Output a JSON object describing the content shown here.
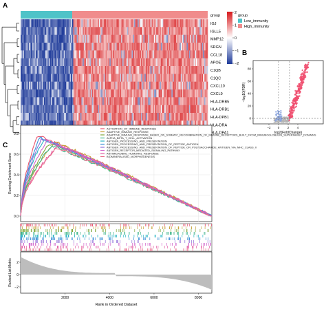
{
  "panels": {
    "a_label": "A",
    "b_label": "B",
    "c_label": "C"
  },
  "heatmap": {
    "genes": [
      "IGJ",
      "IGLL5",
      "MMP12",
      "SRGN",
      "CCL18",
      "APOE",
      "C1QB",
      "C1QC",
      "CXCL10",
      "CXCL9",
      "HLA-DRB5",
      "HLA-DRB1",
      "HLA-DPB1",
      "HLA-DRA",
      "HLA-DPA1"
    ],
    "group_annotation_label": "group",
    "colorbar_ticks": [
      "2",
      "1",
      "0",
      "−1",
      "−2"
    ],
    "legend_title": "group",
    "legend_items": [
      {
        "label": "Low_immunity",
        "color": "#4fc3c8"
      },
      {
        "label": "High_immunity",
        "color": "#f08c8c"
      }
    ],
    "colors": {
      "low": "#1f3b9a",
      "mid": "#ffffff",
      "high": "#d7191c"
    }
  },
  "volcano": {
    "xlabel": "log2(FoldChange)",
    "ylabel": "−log10(FDR)",
    "yticks": [
      "80",
      "60",
      "40",
      "20",
      "0"
    ],
    "xticks": [
      "−2",
      "0",
      "2",
      "4"
    ]
  },
  "gsea": {
    "ylabel_top": "Running Enrichment Score",
    "ylabel_bottom": "Ranked List Metric",
    "xlabel": "Rank in Ordered Dataset",
    "es_ticks": [
      "0.8",
      "0.6",
      "0.4",
      "0.2",
      "0.0"
    ],
    "metric_ticks": [
      "2",
      "0",
      "−2"
    ],
    "rank_ticks": [
      "2000",
      "4000",
      "6000",
      "8000"
    ],
    "gene_sets": [
      {
        "name": "ACTIVATION_OF_IMMUNE_RESPONSE",
        "color": "#e8546f"
      },
      {
        "name": "ADAPTIVE_IMMUNE_RESPONSE",
        "color": "#c7a23b"
      },
      {
        "name": "ADAPTIVE_IMMUNE_RESPONSE_BASED_ON_SOMATIC_RECOMBINATION_OF_IMMUNE_RECEPTORS_BUILT_FROM_IMMUNOGLOBULIN_SUPERFAMILY_DOMAINS",
        "color": "#7fa63a"
      },
      {
        "name": "ALPHA_BETA_T_CELL_ACTIVATION",
        "color": "#3fb58a"
      },
      {
        "name": "ANTIGEN_PROCESSING_AND_PRESENTATION",
        "color": "#29b5c4"
      },
      {
        "name": "ANTIGEN_PROCESSING_AND_PRESENTATION_OF_PEPTIDE_ANTIGEN",
        "color": "#3a8fd6"
      },
      {
        "name": "ANTIGEN_PROCESSING_AND_PRESENTATION_OF_PEPTIDE_OR_POLYSACCHARIDE_ANTIGEN_VIA_MHC_CLASS_II",
        "color": "#8f6fd8"
      },
      {
        "name": "ANTIGEN_RECEPTOR_MEDIATED_SIGNALING_PATHWAY",
        "color": "#d162c9"
      },
      {
        "name": "ANTIMICROBIAL_HUMORAL_RESPONSE",
        "color": "#e45fa6"
      },
      {
        "name": "BIOMINERALISED_MORPHOGENESIS",
        "color": "#ea6f8c"
      }
    ]
  }
}
